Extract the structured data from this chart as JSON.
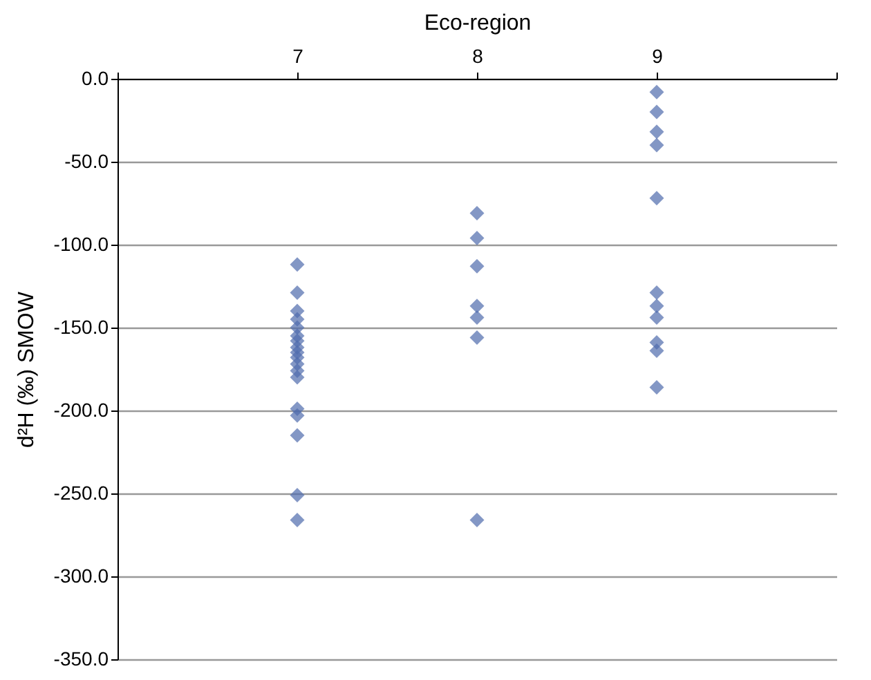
{
  "chart_data": {
    "type": "scatter",
    "xlabel": "Eco-region",
    "ylabel": "d²H (‰) SMOW",
    "xlim": [
      6,
      10
    ],
    "xticks": [
      {
        "value": 6,
        "label": null
      },
      7,
      8,
      9,
      {
        "value": 10,
        "label": null
      }
    ],
    "ylim": [
      -350,
      0
    ],
    "yticks": [
      {
        "value": -350,
        "label": "-350.0"
      },
      {
        "value": -300,
        "label": "-300.0"
      },
      {
        "value": -250,
        "label": "-250.0"
      },
      {
        "value": -200,
        "label": "-200.0"
      },
      {
        "value": -150,
        "label": "-150.0"
      },
      {
        "value": -100,
        "label": "-100.0"
      },
      {
        "value": -50,
        "label": "-50.0"
      },
      {
        "value": 0,
        "label": "0.0"
      }
    ],
    "grid": "y",
    "marker": "diamond",
    "x": [
      7,
      7,
      7,
      7,
      7,
      7,
      7,
      7,
      7,
      7,
      7,
      7,
      7,
      7,
      7,
      7,
      7,
      7,
      8,
      8,
      8,
      8,
      8,
      8,
      8,
      9,
      9,
      9,
      9,
      9,
      9,
      9,
      9,
      9,
      9,
      9
    ],
    "series": [
      {
        "color": "#4f6bad",
        "values": [
          -112,
          -129,
          -140,
          -145,
          -150,
          -155,
          -158,
          -162,
          -165,
          -168,
          -172,
          -176,
          -180,
          -199,
          -203,
          -215,
          -251,
          -266,
          -81,
          -96,
          -113,
          -137,
          -144,
          -156,
          -266,
          -8,
          -20,
          -32,
          -40,
          -72,
          -129,
          -137,
          -144,
          -159,
          -164,
          -186
        ]
      }
    ]
  }
}
